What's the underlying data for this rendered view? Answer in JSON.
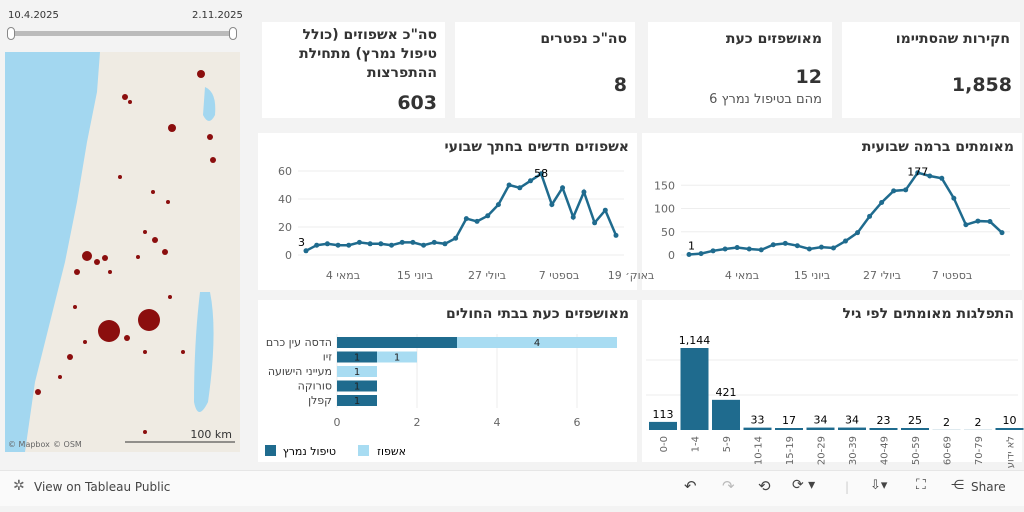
{
  "slider": {
    "start": "10.4.2025",
    "end": "2.11.2025"
  },
  "map": {
    "attribution_mapbox": "© Mapbox",
    "attribution_osm": "© OSM",
    "scale": "100 km",
    "dot_color": "#8b0e0e",
    "sea_color": "#a3d7f0"
  },
  "kpis": [
    {
      "title": "חקירות שהסתיימו",
      "value": "1,858"
    },
    {
      "title": "מאושפזים כעת",
      "value": "12",
      "sub": "מהם בטיפול נמרץ 6"
    },
    {
      "title": "סה\"כ נפטרים",
      "value": "8"
    },
    {
      "title": "סה\"כ אשפוזים (כולל טיפול נמרץ) מתחילת ההתפרצות",
      "value": "603"
    }
  ],
  "colors": {
    "dark": "#1f6b8e",
    "light": "#a8dcf2"
  },
  "chart_data": [
    {
      "type": "line",
      "title": "מאומתים ברמה שבועית",
      "yticks": [
        "0",
        "50",
        "100",
        "150"
      ],
      "ylim": [
        0,
        185
      ],
      "xticks": [
        "4 במאי",
        "15 ביוני",
        "27 ביולי",
        "7 בספטי"
      ],
      "values": [
        1,
        3,
        9,
        13,
        16,
        13,
        11,
        22,
        25,
        20,
        13,
        17,
        15,
        30,
        48,
        83,
        113,
        138,
        140,
        177,
        170,
        165,
        122,
        65,
        73,
        72,
        48
      ],
      "labels": {
        "first": "1",
        "max": "177"
      }
    },
    {
      "type": "line",
      "title": "אשפוזים חדשים בחתך שבועי",
      "yticks": [
        "0",
        "20",
        "40",
        "60"
      ],
      "ylim": [
        0,
        60
      ],
      "xticks": [
        "4 במאי",
        "15 ביוני",
        "27 ביולי",
        "7 בספטי",
        "19 באוק׳"
      ],
      "values": [
        3,
        7,
        8,
        7,
        7,
        9,
        8,
        8,
        7,
        9,
        9,
        7,
        9,
        8,
        12,
        26,
        24,
        28,
        36,
        50,
        48,
        53,
        58,
        36,
        48,
        27,
        45,
        23,
        32,
        14
      ],
      "labels": {
        "first": "3",
        "max": "58"
      }
    },
    {
      "type": "bar",
      "title": "מאושפזים כעת בבתי החולים",
      "xticks": [
        "0",
        "2",
        "4",
        "6"
      ],
      "xlim": [
        0,
        7
      ],
      "categories": [
        "הדסה עין כרם",
        "זיו",
        "מעייני הישועה",
        "סורוקה",
        "קפלן"
      ],
      "series": [
        {
          "name": "טיפול נמרץ",
          "values": [
            3,
            1,
            0,
            1,
            1
          ],
          "labels": [
            "",
            "1",
            "",
            "1",
            "1"
          ]
        },
        {
          "name": "אשפוז",
          "values": [
            4,
            1,
            1,
            0,
            0
          ],
          "labels": [
            "4",
            "1",
            "1",
            "",
            ""
          ]
        }
      ]
    },
    {
      "type": "bar",
      "title": "התפלגות מאומתים לפי גיל",
      "categories": [
        "0-0",
        "1-4",
        "5-9",
        "10-14",
        "15-19",
        "20-29",
        "30-39",
        "40-49",
        "50-59",
        "60-69",
        "70-79",
        "לא ידוע"
      ],
      "values": [
        113,
        1144,
        421,
        33,
        17,
        34,
        34,
        23,
        25,
        2,
        2,
        10
      ],
      "value_labels": [
        "113",
        "1,144",
        "421",
        "33",
        "17",
        "34",
        "34",
        "23",
        "25",
        "2",
        "2",
        "10"
      ]
    }
  ],
  "toolbar": {
    "view": "View on Tableau Public",
    "share": "Share"
  }
}
